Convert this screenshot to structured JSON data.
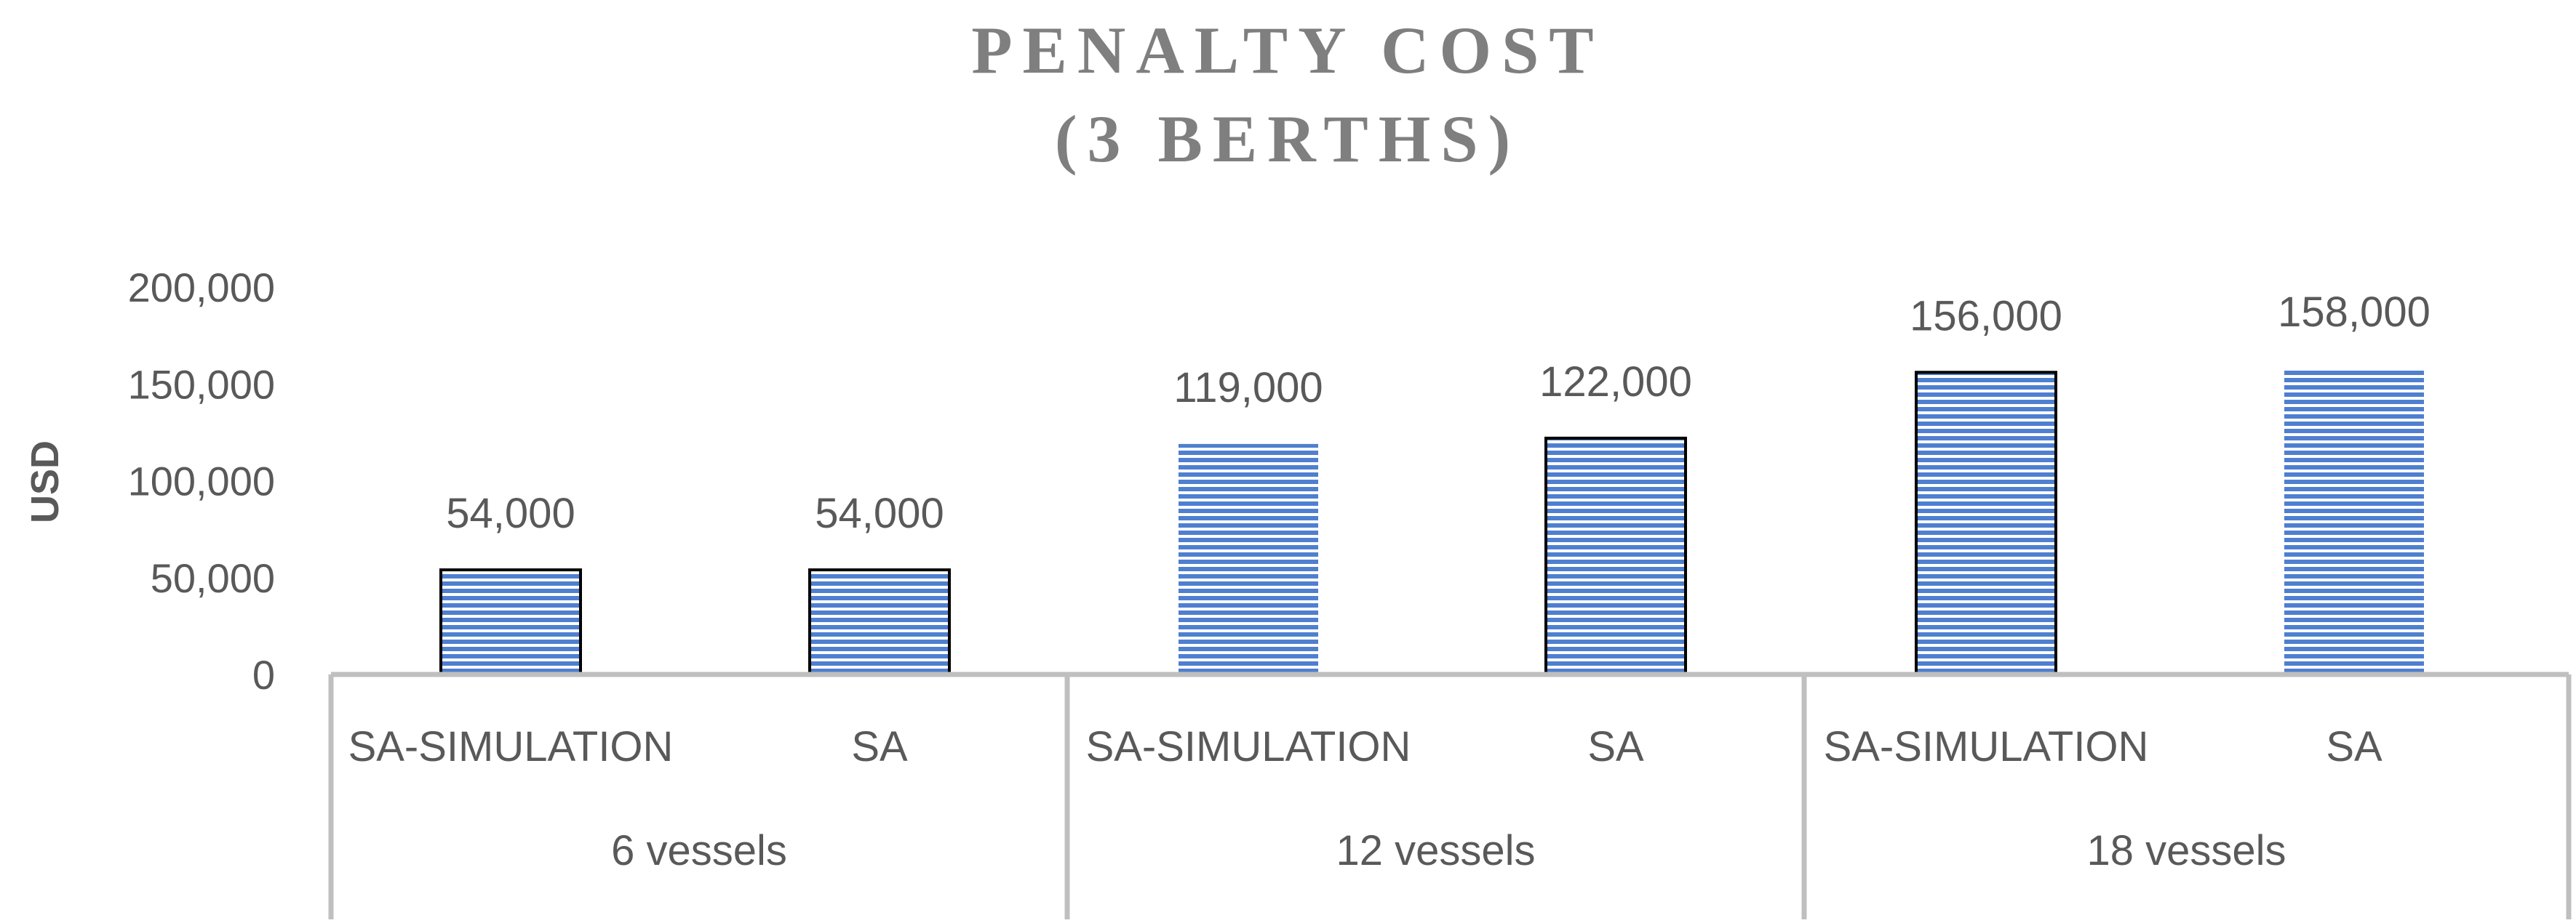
{
  "chart_data": {
    "type": "bar",
    "title": "PENALTY COST",
    "subtitle": "(3 BERTHS)",
    "xlabel": "",
    "ylabel": "USD",
    "ylim": [
      0,
      200000
    ],
    "yticks": [
      0,
      50000,
      100000,
      150000,
      200000
    ],
    "ytick_labels": [
      "0",
      "50,000",
      "100,000",
      "150,000",
      "200,000"
    ],
    "groups": [
      "6 vessels",
      "12 vessels",
      "18 vessels"
    ],
    "bars": [
      {
        "group": "6 vessels",
        "category": "SA-SIMULATION",
        "value": 54000,
        "label": "54,000",
        "outlined": true
      },
      {
        "group": "6 vessels",
        "category": "SA",
        "value": 54000,
        "label": "54,000",
        "outlined": true
      },
      {
        "group": "12 vessels",
        "category": "SA-SIMULATION",
        "value": 119000,
        "label": "119,000",
        "outlined": false
      },
      {
        "group": "12 vessels",
        "category": "SA",
        "value": 122000,
        "label": "122,000",
        "outlined": true
      },
      {
        "group": "18 vessels",
        "category": "SA-SIMULATION",
        "value": 156000,
        "label": "156,000",
        "outlined": true
      },
      {
        "group": "18 vessels",
        "category": "SA",
        "value": 158000,
        "label": "158,000",
        "outlined": false
      }
    ],
    "grid": false,
    "legend": "none",
    "colors": {
      "bar_fill": "#4f7fd0",
      "bar_stripe": "#ffffff",
      "bar_outline": "#000000",
      "axis": "#bfbfbf",
      "text": "#595959",
      "title": "#7f7f7f"
    }
  }
}
